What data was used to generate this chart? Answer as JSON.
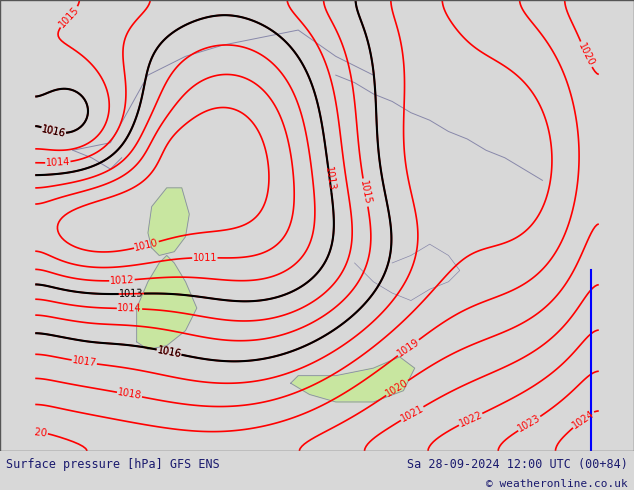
{
  "title_left": "Surface pressure [hPa] GFS ENS",
  "title_right": "Sa 28-09-2024 12:00 UTC (00+84)",
  "copyright": "© weatheronline.co.uk",
  "bg_color": "#c8c8c8",
  "land_color": "#c8e6a0",
  "sea_color": "#d8d8d8",
  "contour_color_red": "#ff0000",
  "contour_color_black": "#000000",
  "contour_color_blue": "#0000ff",
  "label_color_red": "#ff0000",
  "label_color_black": "#000000",
  "footer_color": "#1a1a6e",
  "footer_bg": "#e8e8e8",
  "pressure_levels": [
    1013,
    1014,
    1015,
    1016,
    1017,
    1018,
    1019,
    1020,
    1021,
    1022
  ],
  "xlim": [
    5.5,
    20.5
  ],
  "ylim": [
    36.0,
    48.0
  ],
  "figsize": [
    6.34,
    4.9
  ],
  "dpi": 100
}
